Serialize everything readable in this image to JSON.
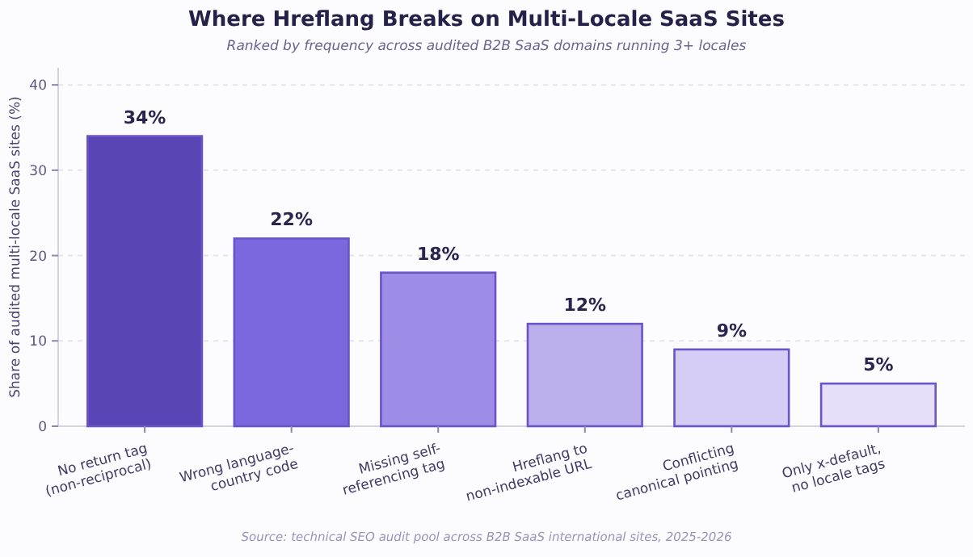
{
  "chart_data": {
    "type": "bar",
    "title": "Where Hreflang Breaks on Multi-Locale SaaS Sites",
    "subtitle": "Ranked by frequency across audited B2B SaaS domains running 3+ locales",
    "ylabel": "Share of audited multi-locale SaaS sites (%)",
    "categories": [
      "No return tag\n(non-reciprocal)",
      "Wrong language-\ncountry code",
      "Missing self-\nreferencing tag",
      "Hreflang to\nnon-indexable URL",
      "Conflicting\ncanonical pointing",
      "Only x-default,\nno locale tags"
    ],
    "values": [
      34,
      22,
      18,
      12,
      9,
      5
    ],
    "colors": [
      "#5a45b4",
      "#7b68de",
      "#9e8de6",
      "#bdaeec",
      "#d6cdf6",
      "#e7defa"
    ],
    "value_labels": [
      "34%",
      "22%",
      "18%",
      "12%",
      "9%",
      "5%"
    ],
    "ylim": [
      0,
      42
    ],
    "yticks": [
      0,
      10,
      20,
      30,
      40
    ],
    "grid": "y",
    "annotations": [
      "Source: technical SEO audit pool across B2B SaaS international sites, 2025-2026"
    ]
  }
}
